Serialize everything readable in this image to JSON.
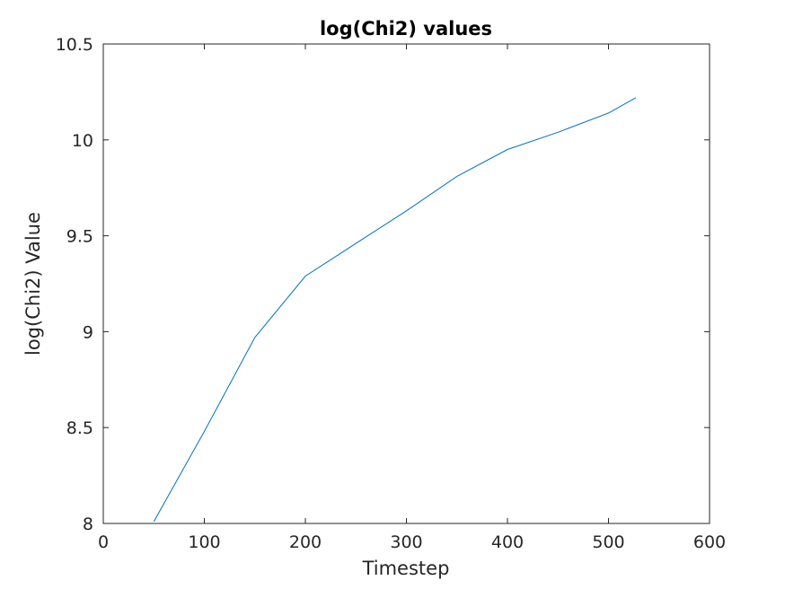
{
  "chart_data": {
    "type": "line",
    "title": "log(Chi2) values",
    "xlabel": "Timestep",
    "ylabel": "log(Chi2) Value",
    "xlim": [
      0,
      600
    ],
    "ylim": [
      8,
      10.5
    ],
    "xticks": [
      0,
      100,
      200,
      300,
      400,
      500,
      600
    ],
    "yticks": [
      8,
      8.5,
      9,
      9.5,
      10,
      10.5
    ],
    "xtick_labels": [
      "0",
      "100",
      "200",
      "300",
      "400",
      "500",
      "600"
    ],
    "ytick_labels": [
      "8",
      "8.5",
      "9",
      "9.5",
      "10",
      "10.5"
    ],
    "grid": false,
    "series": [
      {
        "color": "#0072bd",
        "x": [
          50,
          100,
          150,
          200,
          250,
          300,
          350,
          400,
          450,
          500,
          527
        ],
        "y": [
          8.01,
          8.48,
          8.97,
          9.29,
          9.46,
          9.63,
          9.81,
          9.95,
          10.04,
          10.14,
          10.22
        ]
      }
    ]
  }
}
